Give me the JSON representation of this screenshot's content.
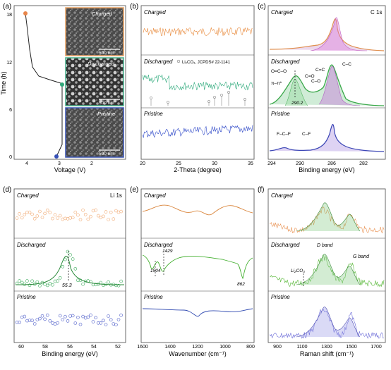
{
  "panels": {
    "a": {
      "tag": "(a)",
      "ylabel": "Time (h)",
      "xlabel": "Voltage (V)",
      "yticks": [
        "0",
        "6",
        "12",
        "18"
      ],
      "xticks": [
        "4",
        "3",
        "2"
      ],
      "insets": [
        {
          "label": "Charged",
          "scale": "500 nm",
          "border": "#e8a060"
        },
        {
          "label": "Discharged",
          "scale": "500 nm",
          "border": "#45b08c"
        },
        {
          "label": "Pristine",
          "scale": "500 nm",
          "border": "#3a55b5"
        }
      ],
      "marker_colors": [
        "#e8854a",
        "#2fa97a",
        "#3550b8"
      ]
    },
    "b": {
      "tag": "(b)",
      "xlabel": "2-Theta (degree)",
      "xticks": [
        "20",
        "25",
        "30",
        "35"
      ],
      "rows": [
        {
          "label": "Charged",
          "color": "#e88a3c"
        },
        {
          "label": "Discharged",
          "color": "#2faa7c",
          "note": "Li₂CO₃, JCPDS# 22-1141"
        },
        {
          "label": "Pristine",
          "color": "#2e48c8"
        }
      ]
    },
    "c": {
      "tag": "(c)",
      "title": "C 1s",
      "xlabel": "Binding energy (eV)",
      "xticks": [
        "294",
        "290",
        "286",
        "282"
      ],
      "rows": [
        {
          "label": "Charged"
        },
        {
          "label": "Discharged",
          "annotations": [
            "O=C–O",
            "π–π*",
            "C=C",
            "C=O",
            "C–O",
            "C–C",
            "290.2"
          ]
        },
        {
          "label": "Pristine",
          "annotations": [
            "F–C–F",
            "C–F"
          ]
        }
      ]
    },
    "d": {
      "tag": "(d)",
      "title": "Li 1s",
      "xlabel": "Binding energy (eV)",
      "xticks": [
        "60",
        "58",
        "56",
        "54",
        "52"
      ],
      "rows": [
        {
          "label": "Charged",
          "color": "#f0a870"
        },
        {
          "label": "Discharged",
          "color": "#3aaa5a",
          "peak": "55.3"
        },
        {
          "label": "Pristine",
          "color": "#4a5ac8"
        }
      ]
    },
    "e": {
      "tag": "(e)",
      "xlabel": "Wavenumber (cm⁻¹)",
      "xticks": [
        "1600",
        "1400",
        "1200",
        "1000",
        "800"
      ],
      "rows": [
        {
          "label": "Charged",
          "color": "#d9843a"
        },
        {
          "label": "Discharged",
          "color": "#44b030",
          "peaks": [
            "1504",
            "1429",
            "862"
          ]
        },
        {
          "label": "Pristine",
          "color": "#2e48b0"
        }
      ]
    },
    "f": {
      "tag": "(f)",
      "xlabel": "Raman shift (cm⁻¹)",
      "xticks": [
        "900",
        "1100",
        "1300",
        "1500",
        "1700"
      ],
      "rows": [
        {
          "label": "Charged",
          "color": "#e89050"
        },
        {
          "label": "Discharged",
          "color": "#58b838",
          "bands": [
            "D band",
            "G band",
            "Li₂CO₃"
          ]
        },
        {
          "label": "Pristine",
          "color": "#6a6ad8"
        }
      ]
    }
  }
}
